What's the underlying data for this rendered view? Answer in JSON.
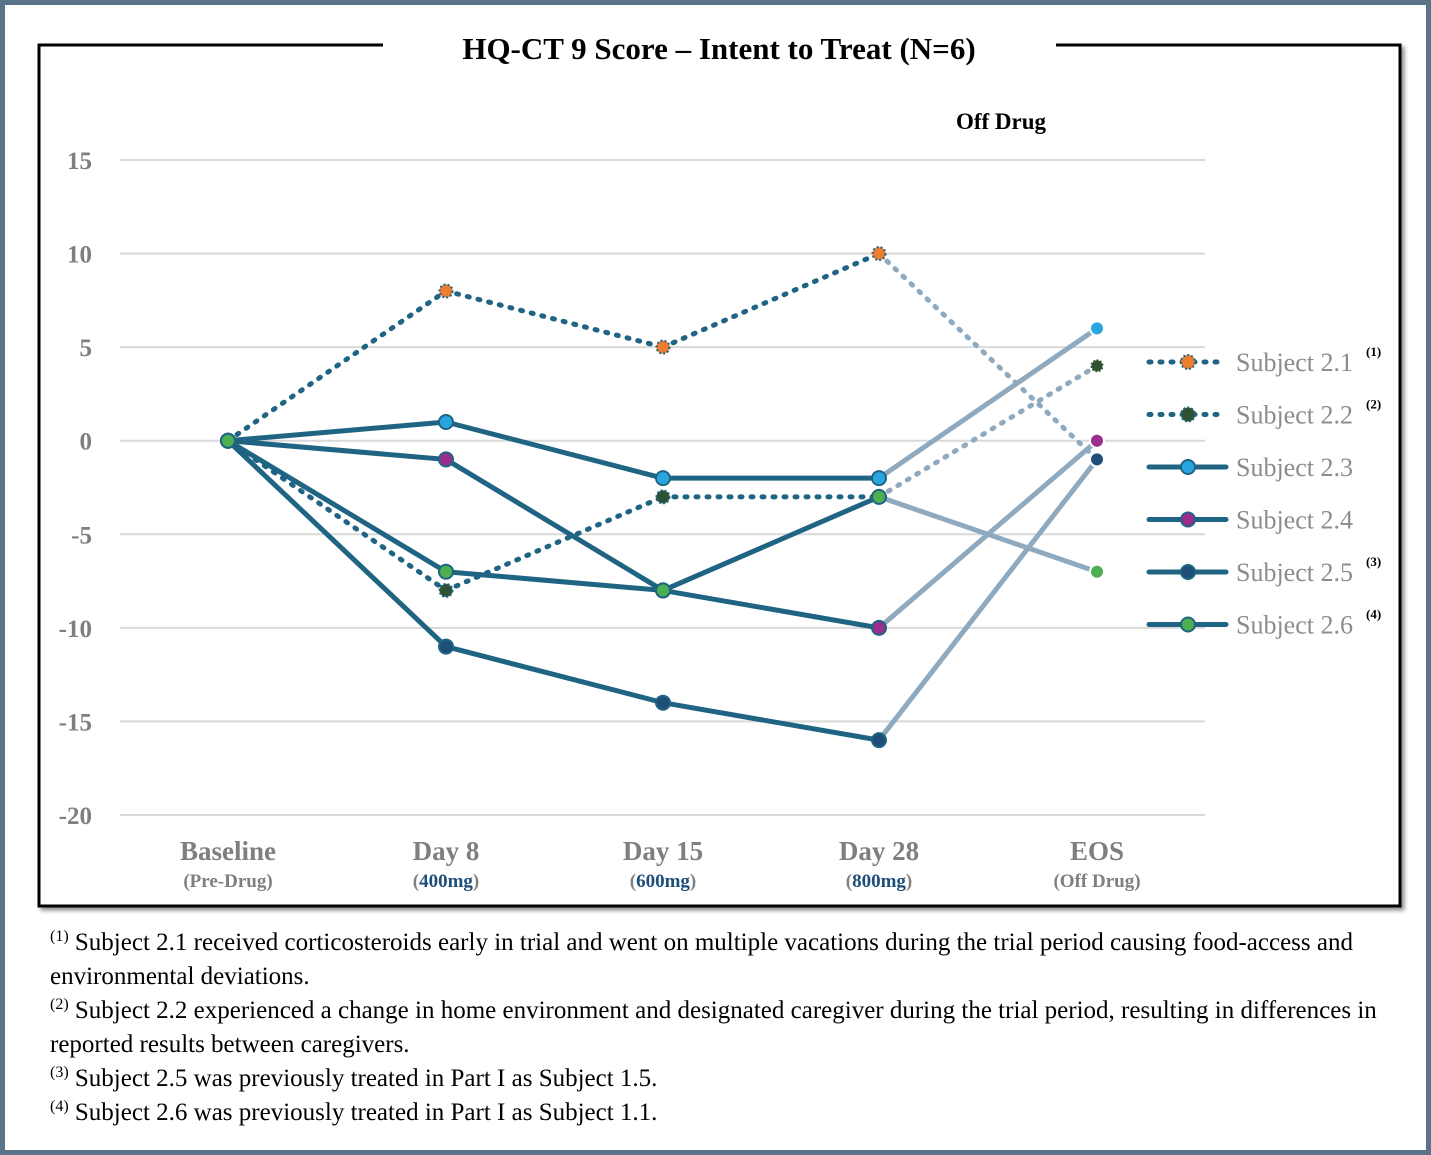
{
  "chart_data": {
    "type": "line",
    "title": "HQ-CT 9 Score – Intent to Treat (N=6)",
    "annotation": "Off Drug",
    "categories": [
      {
        "label": "Baseline",
        "sublabel": "(Pre-Drug)",
        "dose": ""
      },
      {
        "label": "Day 8",
        "sublabel_open": "(",
        "dose": "400mg",
        "sublabel_close": ")"
      },
      {
        "label": "Day 15",
        "sublabel_open": "(",
        "dose": "600mg",
        "sublabel_close": ")"
      },
      {
        "label": "Day 28",
        "sublabel_open": "(",
        "dose": "800mg",
        "sublabel_close": ")"
      },
      {
        "label": "EOS",
        "sublabel": "(Off Drug)",
        "dose": ""
      }
    ],
    "ylim": [
      -20,
      15
    ],
    "yticks": [
      15,
      10,
      5,
      0,
      -5,
      -10,
      -15,
      -20
    ],
    "ytick_labels": [
      "15",
      "10",
      "5",
      "0",
      "-5",
      "-10",
      "-15",
      "-20"
    ],
    "grid": true,
    "legend_position": "right",
    "series": [
      {
        "name": "Subject 2.1",
        "footnote": "(1)",
        "values": [
          0,
          8,
          5,
          10,
          -1
        ],
        "style": "dotted",
        "marker": "#ed7d31"
      },
      {
        "name": "Subject 2.2",
        "footnote": "(2)",
        "values": [
          0,
          -8,
          -3,
          -3,
          4
        ],
        "style": "dotted",
        "marker": "#2f5233"
      },
      {
        "name": "Subject 2.3",
        "footnote": "",
        "values": [
          0,
          1,
          -2,
          -2,
          6
        ],
        "style": "solid",
        "marker": "#29a6e0"
      },
      {
        "name": "Subject 2.4",
        "footnote": "",
        "values": [
          0,
          -1,
          -8,
          -10,
          0
        ],
        "style": "solid",
        "marker": "#9b2d8e"
      },
      {
        "name": "Subject 2.5",
        "footnote": "(3)",
        "values": [
          0,
          -11,
          -14,
          -16,
          -1
        ],
        "style": "solid",
        "marker": "#1f4e79"
      },
      {
        "name": "Subject 2.6",
        "footnote": "(4)",
        "values": [
          0,
          -7,
          -8,
          -3,
          -7
        ],
        "style": "solid",
        "marker": "#4caf50"
      }
    ],
    "colors": {
      "on_drug_line": "#1f6482",
      "off_drug_line": "#8fa9bf",
      "grid": "#d9d9d9",
      "axis_label": "#7f7f7f",
      "dose": "#1f4e79",
      "legend_text": "#8c8c8c"
    }
  },
  "footnotes": [
    {
      "marker": "(1)",
      "text": " Subject 2.1 received corticosteroids early in trial and went on multiple vacations during the trial period causing food-access and environmental deviations."
    },
    {
      "marker": "(2)",
      "text": " Subject 2.2 experienced a change in home environment and designated caregiver during the trial period, resulting in differences in reported results between caregivers."
    },
    {
      "marker": "(3)",
      "text": " Subject 2.5 was previously treated in Part I as Subject 1.5."
    },
    {
      "marker": "(4)",
      "text": " Subject 2.6 was previously treated in Part I as Subject 1.1."
    }
  ]
}
